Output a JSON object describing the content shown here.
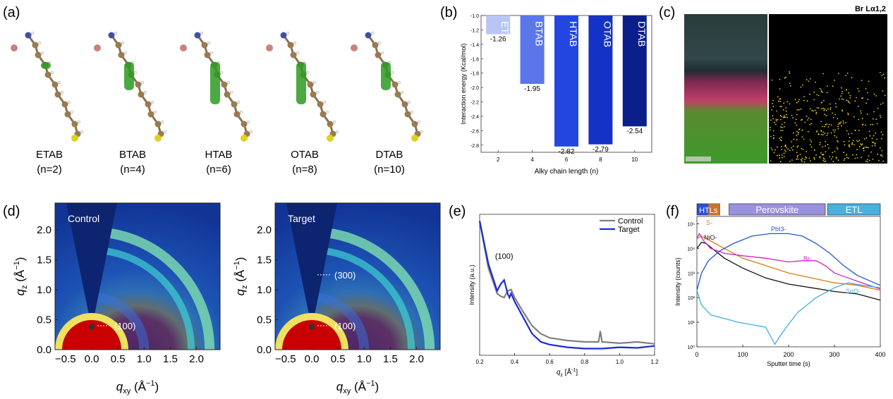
{
  "panels": {
    "a": {
      "label": "(a)",
      "molecules": [
        {
          "name": "ETAB",
          "n": "(n=2)"
        },
        {
          "name": "BTAB",
          "n": "(n=4)"
        },
        {
          "name": "HTAB",
          "n": "(n=6)"
        },
        {
          "name": "OTAB",
          "n": "(n=8)"
        },
        {
          "name": "DTAB",
          "n": "(n=10)"
        }
      ]
    },
    "b": {
      "label": "(b)"
    },
    "c": {
      "label": "(c)",
      "map_title": "Br Lα1,2"
    },
    "d": {
      "label": "(d)",
      "plots": [
        {
          "title": "Control",
          "peaks": [
            "(100)"
          ]
        },
        {
          "title": "Target",
          "peaks": [
            "(300)",
            "(100)"
          ]
        }
      ],
      "ylabel_base": "q",
      "ylabel_sub": "z",
      "ylabel_unit": " (Å",
      "xlabel_base": "q",
      "xlabel_sub": "xy",
      "xlabel_unit": " (Å",
      "unit_exp": "−1",
      "close": ")",
      "x_ticks": [
        "−0.5",
        "0.0",
        "0.5",
        "1.0",
        "1.5",
        "2.0"
      ],
      "y_ticks": [
        "0.0",
        "0.5",
        "1.0",
        "1.5",
        "2.0"
      ]
    },
    "e": {
      "label": "(e)"
    },
    "f": {
      "label": "(f)",
      "bands": [
        "HTLs",
        "Perovskite",
        "ETL"
      ]
    }
  },
  "chart_data": [
    {
      "panel": "b",
      "type": "bar",
      "categories": [
        "ETAB",
        "BTAB",
        "HTAB",
        "OTAB",
        "DTAB"
      ],
      "x": [
        2,
        4,
        6,
        8,
        10
      ],
      "values": [
        -1.26,
        -1.95,
        -2.82,
        -2.79,
        -2.54
      ],
      "value_labels": [
        "-1.26",
        "-1.95",
        "-2.82",
        "-2.79",
        "-2.54"
      ],
      "colors": [
        "#b9c6f5",
        "#5b76e8",
        "#2446e0",
        "#1532c6",
        "#0a1f8a"
      ],
      "xlabel": "Alky chain length (n)",
      "ylabel": "Interaction energy (Kcal/mol)",
      "ylim": [
        -2.9,
        -1.0
      ],
      "y_ticks": [
        "-1.0",
        "-1.2",
        "-1.4",
        "-1.6",
        "-1.8",
        "-2.0",
        "-2.2",
        "-2.4",
        "-2.6",
        "-2.8"
      ],
      "x_ticks": [
        "2",
        "4",
        "6",
        "8",
        "10"
      ]
    },
    {
      "panel": "e",
      "type": "line",
      "xlabel": "q",
      "xlabel_sub": "z",
      "xlabel_unit": " [Å",
      "xlabel_exp": "-1",
      "xlabel_close": "]",
      "ylabel": "Intensity (a.u.)",
      "xlim": [
        0.2,
        1.2
      ],
      "x_ticks": [
        "0.2",
        "0.4",
        "0.6",
        "0.8",
        "1.0",
        "1.2"
      ],
      "annotation": "(100)",
      "legend": "top-right",
      "series": [
        {
          "name": "Control",
          "color": "#808080",
          "x": [
            0.2,
            0.25,
            0.3,
            0.32,
            0.34,
            0.36,
            0.38,
            0.4,
            0.45,
            0.5,
            0.55,
            0.6,
            0.7,
            0.8,
            0.88,
            0.89,
            0.9,
            1.0,
            1.1,
            1.2
          ],
          "y": [
            10,
            6.5,
            4.6,
            4.4,
            4.3,
            4.8,
            4.9,
            4.3,
            3.2,
            2.2,
            1.6,
            1.3,
            1.1,
            1.0,
            1.0,
            1.8,
            1.0,
            0.9,
            1.0,
            0.85
          ]
        },
        {
          "name": "Target",
          "color": "#1a2bd0",
          "x": [
            0.2,
            0.25,
            0.3,
            0.32,
            0.34,
            0.36,
            0.37,
            0.38,
            0.4,
            0.45,
            0.5,
            0.55,
            0.6,
            0.7,
            0.8,
            0.9,
            1.0,
            1.1,
            1.2
          ],
          "y": [
            10,
            6.8,
            4.8,
            5.3,
            5.6,
            4.6,
            4.3,
            4.6,
            4.0,
            2.8,
            1.6,
            1.0,
            0.8,
            0.6,
            0.5,
            0.5,
            0.6,
            0.55,
            0.7
          ]
        }
      ]
    },
    {
      "panel": "f",
      "type": "line",
      "xlabel": "Sputter time (s)",
      "ylabel": "Intensity (counts)",
      "xlim": [
        0,
        400
      ],
      "log_y": true,
      "ylim": [
        0,
        5
      ],
      "x_ticks": [
        "0",
        "100",
        "200",
        "300",
        "400"
      ],
      "y_ticks": [
        "10⁰",
        "10¹",
        "10²",
        "10³",
        "10⁴",
        "10⁵"
      ],
      "series": [
        {
          "name": "S-",
          "color": "#e07a10",
          "x": [
            0,
            10,
            30,
            60,
            100,
            150,
            200,
            250,
            300,
            350,
            400
          ],
          "y": [
            4.4,
            4.5,
            4.3,
            4.0,
            3.6,
            3.3,
            3.0,
            2.8,
            2.6,
            2.5,
            2.3
          ]
        },
        {
          "name": "NiO-",
          "color": "#111111",
          "x": [
            0,
            10,
            20,
            40,
            60,
            100,
            150,
            200,
            250,
            300,
            350,
            400
          ],
          "y": [
            4.0,
            4.25,
            4.2,
            3.9,
            3.6,
            3.2,
            2.8,
            2.55,
            2.4,
            2.25,
            2.15,
            1.9
          ]
        },
        {
          "name": "PbI3-",
          "color": "#2255d0",
          "x": [
            0,
            10,
            25,
            50,
            80,
            120,
            160,
            200,
            230,
            260,
            290,
            320,
            350,
            400
          ],
          "y": [
            2.3,
            3.0,
            3.5,
            3.9,
            4.2,
            4.5,
            4.6,
            4.6,
            4.5,
            4.2,
            3.8,
            3.3,
            2.9,
            2.5
          ]
        },
        {
          "name": "Br-",
          "color": "#d020c8",
          "x": [
            0,
            5,
            15,
            30,
            60,
            100,
            150,
            200,
            230,
            260,
            280,
            300,
            330,
            360,
            400
          ],
          "y": [
            4.4,
            4.6,
            4.3,
            4.0,
            3.8,
            3.7,
            3.6,
            3.45,
            3.5,
            3.5,
            3.3,
            3.0,
            2.8,
            2.6,
            2.35
          ]
        },
        {
          "name": "SnO-",
          "color": "#40aee0",
          "x": [
            0,
            10,
            30,
            60,
            90,
            120,
            150,
            170,
            180,
            195,
            220,
            260,
            300,
            330,
            360,
            400
          ],
          "y": [
            2.3,
            1.7,
            1.3,
            1.15,
            1.0,
            0.9,
            0.8,
            0.1,
            0.4,
            0.8,
            1.4,
            2.0,
            2.4,
            2.6,
            2.5,
            2.4
          ]
        }
      ]
    }
  ]
}
